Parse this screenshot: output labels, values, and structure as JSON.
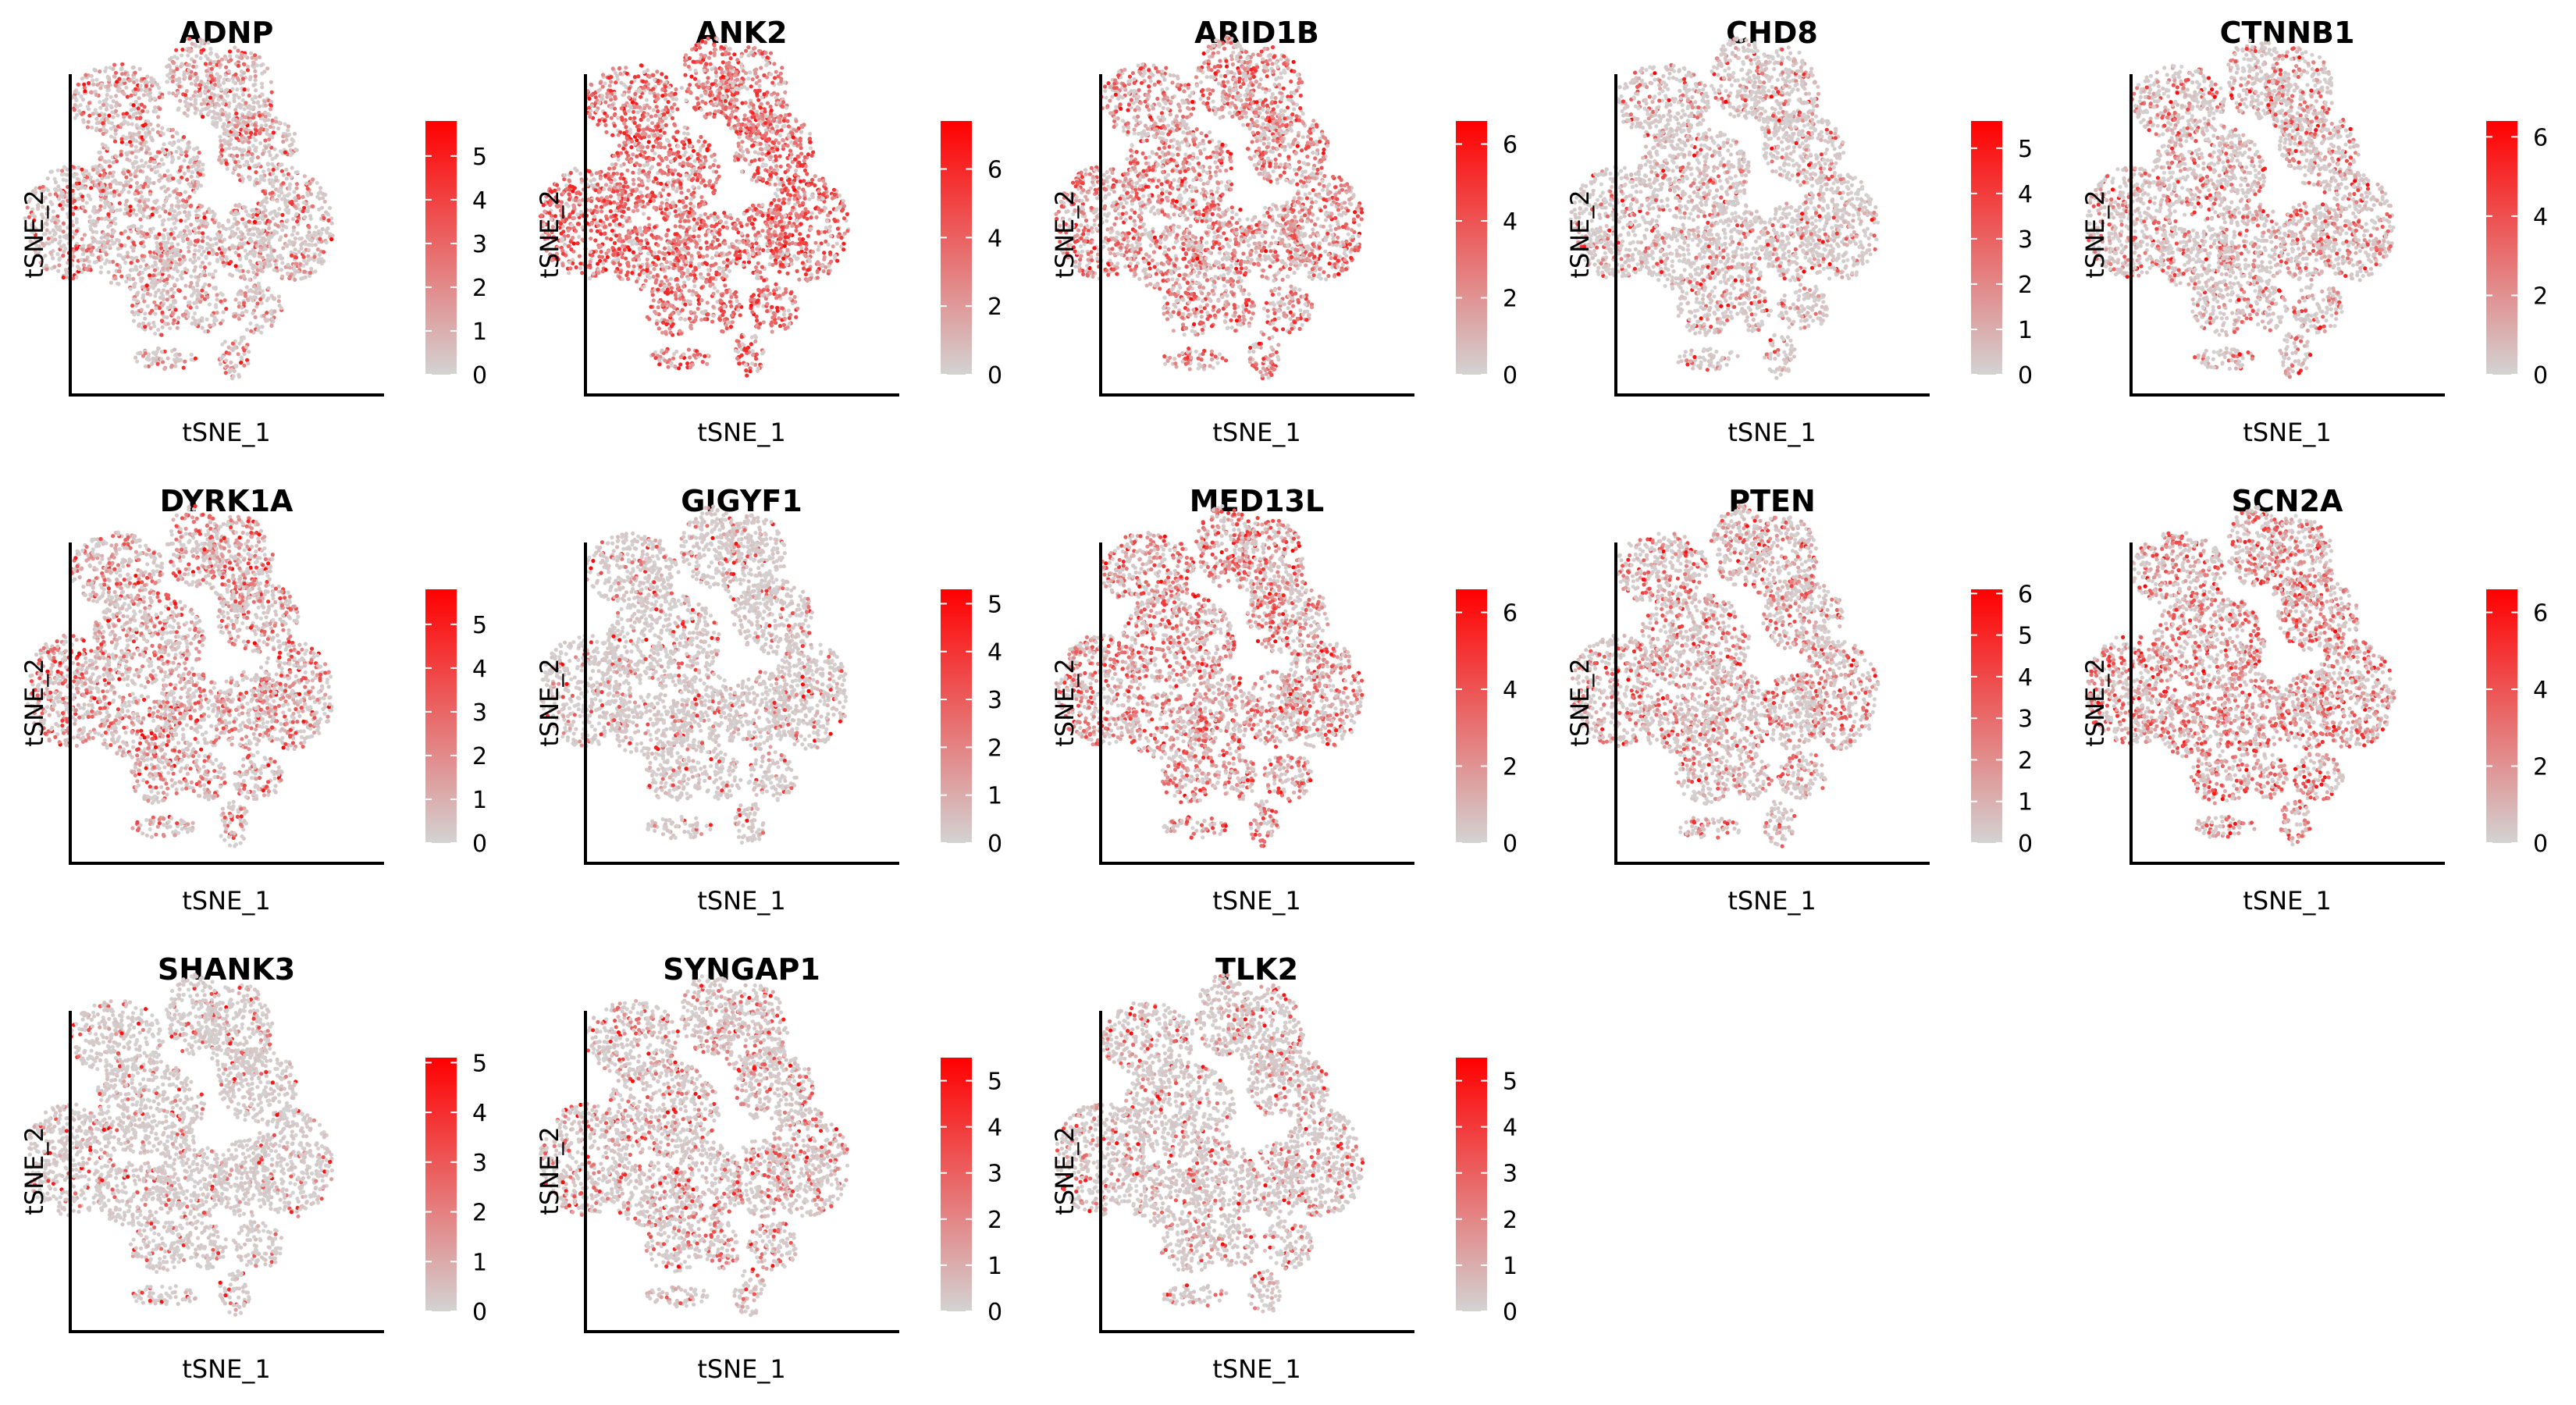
{
  "figure": {
    "title": "",
    "colors": {
      "low": "#d3d3d3",
      "high": "#ff0000",
      "background": "#ffffff",
      "axis": "#000000"
    }
  },
  "chart_data": [
    {
      "type": "scatter",
      "title": "ADNP",
      "xlabel": "tSNE_1",
      "ylabel": "tSNE_2",
      "legend_max": 5.8,
      "legend_ticks": [
        0,
        1,
        2,
        3,
        4,
        5
      ],
      "legend": "right",
      "grid": false,
      "expression_level": 0.35
    },
    {
      "type": "scatter",
      "title": "ANK2",
      "xlabel": "tSNE_1",
      "ylabel": "tSNE_2",
      "legend_max": 7.4,
      "legend_ticks": [
        0,
        2,
        4,
        6
      ],
      "legend": "right",
      "grid": false,
      "expression_level": 0.75
    },
    {
      "type": "scatter",
      "title": "ARID1B",
      "xlabel": "tSNE_1",
      "ylabel": "tSNE_2",
      "legend_max": 6.6,
      "legend_ticks": [
        0,
        2,
        4,
        6
      ],
      "legend": "right",
      "grid": false,
      "expression_level": 0.55
    },
    {
      "type": "scatter",
      "title": "CHD8",
      "xlabel": "tSNE_1",
      "ylabel": "tSNE_2",
      "legend_max": 5.6,
      "legend_ticks": [
        0,
        1,
        2,
        3,
        4,
        5
      ],
      "legend": "right",
      "grid": false,
      "expression_level": 0.2
    },
    {
      "type": "scatter",
      "title": "CTNNB1",
      "xlabel": "tSNE_1",
      "ylabel": "tSNE_2",
      "legend_max": 6.4,
      "legend_ticks": [
        0,
        2,
        4,
        6
      ],
      "legend": "right",
      "grid": false,
      "expression_level": 0.3
    },
    {
      "type": "scatter",
      "title": "DYRK1A",
      "xlabel": "tSNE_1",
      "ylabel": "tSNE_2",
      "legend_max": 5.8,
      "legend_ticks": [
        0,
        1,
        2,
        3,
        4,
        5
      ],
      "legend": "right",
      "grid": false,
      "expression_level": 0.4
    },
    {
      "type": "scatter",
      "title": "GIGYF1",
      "xlabel": "tSNE_1",
      "ylabel": "tSNE_2",
      "legend_max": 5.3,
      "legend_ticks": [
        0,
        1,
        2,
        3,
        4,
        5
      ],
      "legend": "right",
      "grid": false,
      "expression_level": 0.12
    },
    {
      "type": "scatter",
      "title": "MED13L",
      "xlabel": "tSNE_1",
      "ylabel": "tSNE_2",
      "legend_max": 6.6,
      "legend_ticks": [
        0,
        2,
        4,
        6
      ],
      "legend": "right",
      "grid": false,
      "expression_level": 0.5
    },
    {
      "type": "scatter",
      "title": "PTEN",
      "xlabel": "tSNE_1",
      "ylabel": "tSNE_2",
      "legend_max": 6.1,
      "legend_ticks": [
        0,
        1,
        2,
        3,
        4,
        5,
        6
      ],
      "legend": "right",
      "grid": false,
      "expression_level": 0.35
    },
    {
      "type": "scatter",
      "title": "SCN2A",
      "xlabel": "tSNE_1",
      "ylabel": "tSNE_2",
      "legend_max": 6.6,
      "legend_ticks": [
        0,
        2,
        4,
        6
      ],
      "legend": "right",
      "grid": false,
      "expression_level": 0.5
    },
    {
      "type": "scatter",
      "title": "SHANK3",
      "xlabel": "tSNE_1",
      "ylabel": "tSNE_2",
      "legend_max": 5.1,
      "legend_ticks": [
        0,
        1,
        2,
        3,
        4,
        5
      ],
      "legend": "right",
      "grid": false,
      "expression_level": 0.1
    },
    {
      "type": "scatter",
      "title": "SYNGAP1",
      "xlabel": "tSNE_1",
      "ylabel": "tSNE_2",
      "legend_max": 5.5,
      "legend_ticks": [
        0,
        1,
        2,
        3,
        4,
        5
      ],
      "legend": "right",
      "grid": false,
      "expression_level": 0.25
    },
    {
      "type": "scatter",
      "title": "TLK2",
      "xlabel": "tSNE_1",
      "ylabel": "tSNE_2",
      "legend_max": 5.5,
      "legend_ticks": [
        0,
        1,
        2,
        3,
        4,
        5
      ],
      "legend": "right",
      "grid": false,
      "expression_level": 0.2
    }
  ]
}
